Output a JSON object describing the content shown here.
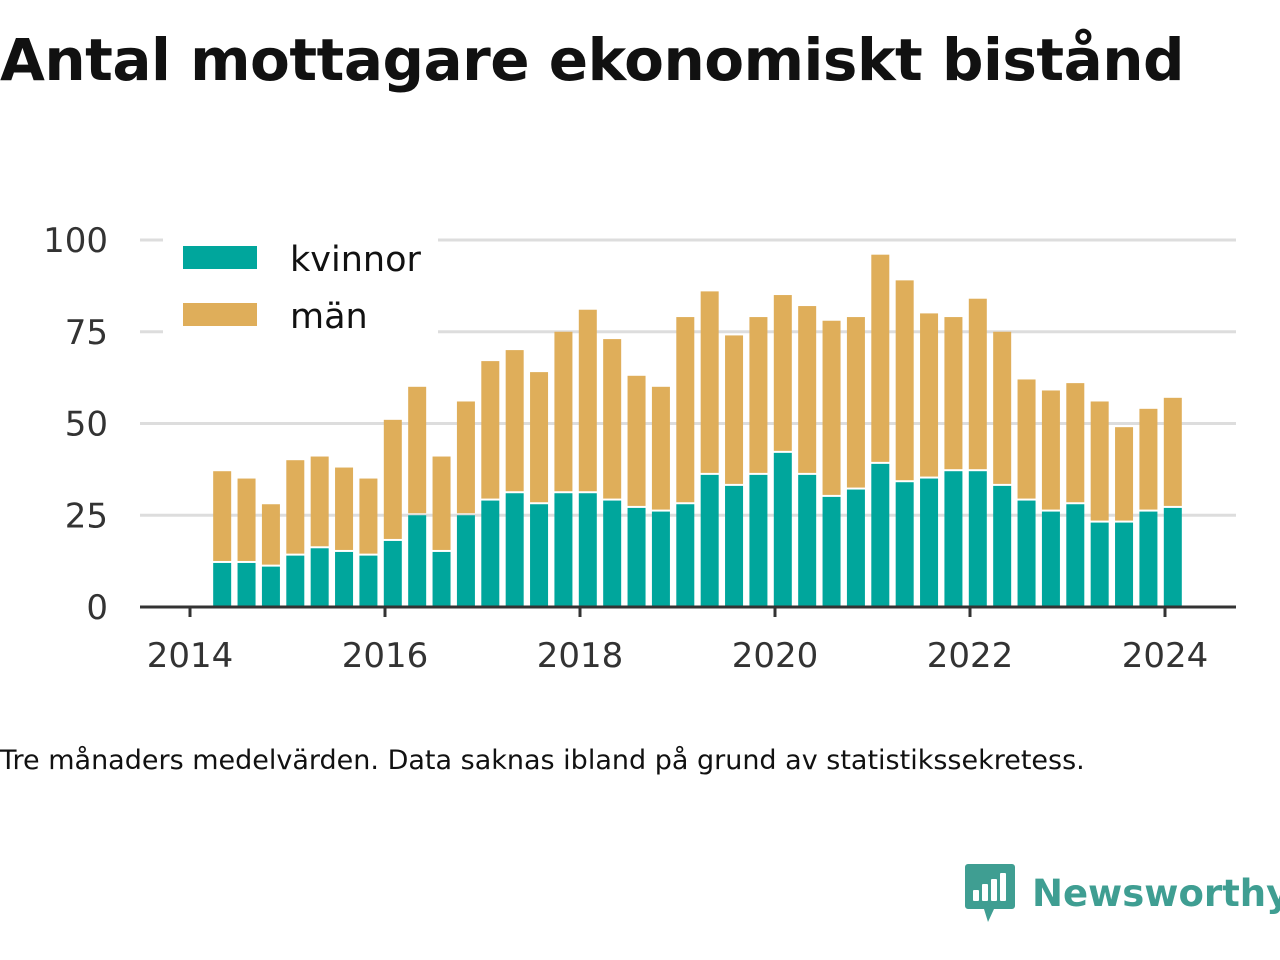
{
  "title": "Antal mottagare ekonomiskt bistånd",
  "footnote": "Tre månaders medelvärden. Data saknas ibland på grund av statistikssekretess.",
  "brand": {
    "name": "Newsworthy",
    "icon": "newsworthy-logo-icon",
    "color": "#3f9e92"
  },
  "colors": {
    "kvinnor": "#00a69c",
    "man": "#dfae5a",
    "grid": "#dddddd",
    "axis": "#333333"
  },
  "chart_data": {
    "type": "bar",
    "stacked": true,
    "title": "Antal mottagare ekonomiskt bistånd",
    "xlabel": "",
    "ylabel": "",
    "ylim": [
      0,
      100
    ],
    "yticks": [
      0,
      25,
      50,
      75,
      100
    ],
    "xticks": [
      "2014",
      "2016",
      "2018",
      "2020",
      "2022",
      "2024"
    ],
    "xlim": [
      2014,
      2024.75
    ],
    "grid": true,
    "legend": "top-left",
    "x": [
      2014.33,
      2014.58,
      2014.83,
      2015.08,
      2015.33,
      2015.58,
      2015.83,
      2016.08,
      2016.33,
      2016.58,
      2016.83,
      2017.08,
      2017.33,
      2017.58,
      2017.83,
      2018.08,
      2018.33,
      2018.58,
      2018.83,
      2019.08,
      2019.33,
      2019.58,
      2019.83,
      2020.08,
      2020.33,
      2020.58,
      2020.83,
      2021.08,
      2021.33,
      2021.58,
      2021.83,
      2022.08,
      2022.33,
      2022.58,
      2022.83,
      2023.08,
      2023.33,
      2023.58,
      2023.83,
      2024.08
    ],
    "series": [
      {
        "name": "kvinnor",
        "color": "#00a69c",
        "values": [
          12,
          12,
          11,
          14,
          16,
          15,
          14,
          18,
          25,
          15,
          25,
          29,
          31,
          28,
          31,
          31,
          29,
          27,
          26,
          28,
          36,
          33,
          36,
          42,
          36,
          30,
          32,
          39,
          34,
          35,
          37,
          37,
          33,
          29,
          26,
          28,
          23,
          23,
          26,
          27
        ]
      },
      {
        "name": "män",
        "color": "#dfae5a",
        "values": [
          25,
          23,
          17,
          26,
          25,
          23,
          21,
          33,
          35,
          26,
          31,
          38,
          39,
          36,
          44,
          50,
          44,
          36,
          34,
          51,
          50,
          41,
          43,
          43,
          46,
          48,
          47,
          57,
          55,
          45,
          42,
          47,
          42,
          33,
          33,
          33,
          33,
          26,
          28,
          30
        ]
      }
    ]
  }
}
